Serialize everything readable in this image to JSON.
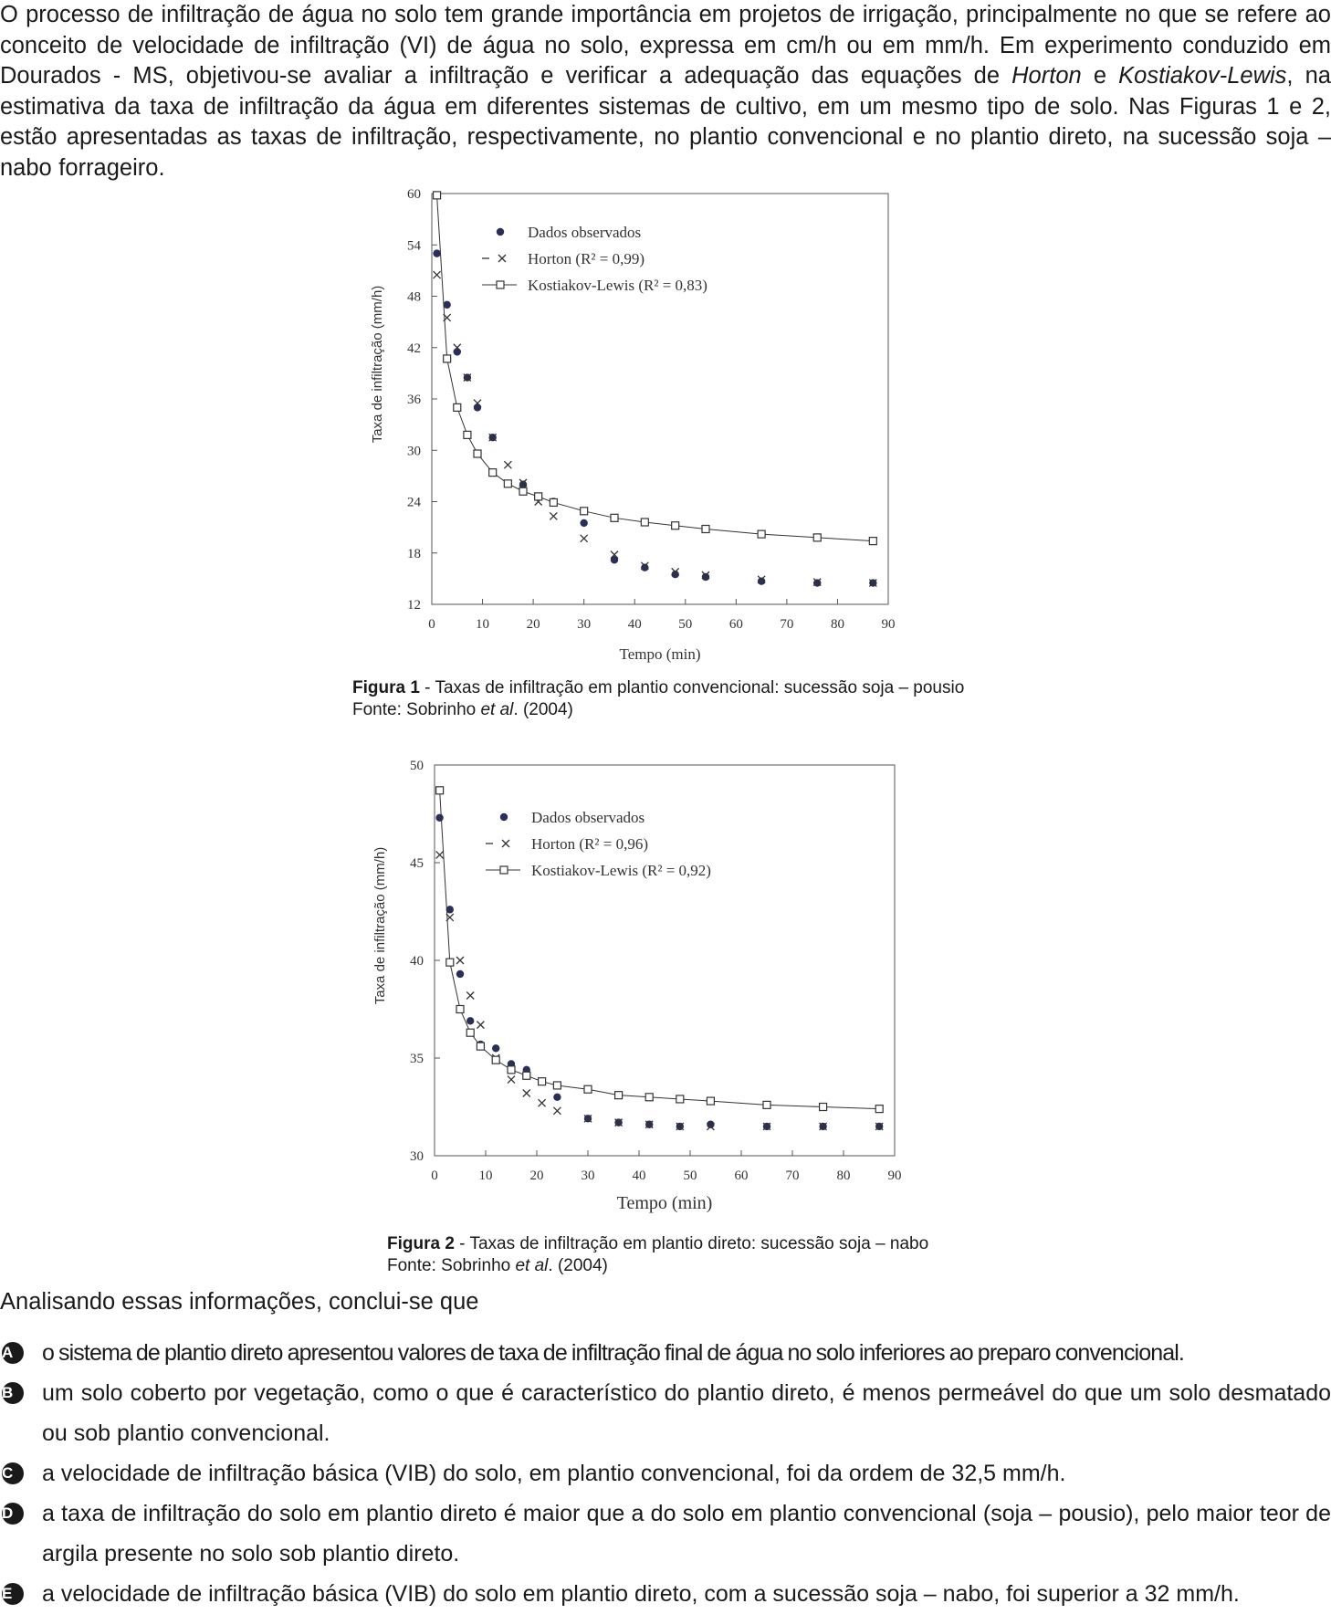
{
  "intro": {
    "part1": "O processo de infiltração de água no solo tem grande importância em projetos de irrigação, principalmente no que se refere ao conceito de velocidade de infiltração (VI) de água no solo, expressa em cm/h ou em mm/h. Em experimento conduzido em Dourados - MS, objetivou-se avaliar a infiltração e verificar a adequação das equações de ",
    "italic1": "Horton",
    "part2": " e ",
    "italic2": "Kostiakov-Lewis",
    "part3": ", na estimativa da taxa de infiltração da água em diferentes sistemas de cultivo, em um mesmo tipo de solo. Nas Figuras 1 e 2, estão apresentadas as taxas de infiltração, respectivamente, no plantio convencional e no plantio direto, na sucessão soja – nabo forrageiro."
  },
  "figure1": {
    "caption_label": "Figura 1",
    "caption_text": " - Taxas de infiltração em plantio convencional: sucessão soja – pousio",
    "source_pre": "Fonte: Sobrinho ",
    "source_italic": "et al",
    "source_post": ". (2004)"
  },
  "figure2": {
    "caption_label": "Figura 2",
    "caption_text": " - Taxas de infiltração em plantio direto: sucessão soja – nabo",
    "source_pre": "Fonte: Sobrinho ",
    "source_italic": "et al",
    "source_post": ". (2004)"
  },
  "question": "Analisando essas informações, conclui-se que",
  "options": [
    {
      "letter": "A",
      "text": "o sistema de plantio direto apresentou valores de taxa de infiltração final de água no solo inferiores ao preparo convencional."
    },
    {
      "letter": "B",
      "text": "um solo coberto por vegetação, como o que é característico do plantio direto, é menos permeável do que um solo desmatado ou sob plantio convencional."
    },
    {
      "letter": "C",
      "text": "a velocidade de infiltração básica (VIB) do solo, em plantio convencional, foi da ordem de 32,5 mm/h."
    },
    {
      "letter": "D",
      "text": "a taxa de infiltração do solo em plantio direto é maior que a do solo em plantio convencional (soja – pousio), pelo maior teor de argila presente no solo sob plantio direto."
    },
    {
      "letter": "E",
      "text": "a velocidade de infiltração básica (VIB) do solo em plantio direto, com a sucessão soja – nabo, foi superior a 32 mm/h."
    }
  ],
  "chart_data": [
    {
      "type": "scatter",
      "xlabel": "Tempo (min)",
      "ylabel": "Taxa de infiltração (mm/h)",
      "xlim": [
        0,
        90
      ],
      "ylim": [
        12,
        60
      ],
      "xticks": [
        0,
        10,
        20,
        30,
        40,
        50,
        60,
        70,
        80,
        90
      ],
      "yticks": [
        12,
        18,
        24,
        30,
        36,
        42,
        48,
        54,
        60
      ],
      "grid": false,
      "legend_position": "top-center",
      "series": [
        {
          "name": "Dados observados",
          "marker": "dot",
          "x": [
            1,
            3,
            5,
            7,
            9,
            12,
            18,
            24,
            30,
            36,
            42,
            48,
            54,
            65,
            76,
            87
          ],
          "y": [
            53,
            47,
            41.5,
            38.5,
            35,
            31.5,
            26,
            24,
            21.5,
            17.2,
            16.3,
            15.5,
            15.2,
            14.7,
            14.5,
            14.5
          ]
        },
        {
          "name": "Horton (R² = 0,99)",
          "marker": "x",
          "x": [
            1,
            3,
            5,
            7,
            9,
            12,
            15,
            18,
            21,
            24,
            30,
            36,
            42,
            48,
            54,
            65,
            76,
            87
          ],
          "y": [
            50.5,
            45.5,
            42,
            38.5,
            35.5,
            31.5,
            28.3,
            26.2,
            24,
            22.3,
            19.7,
            17.8,
            16.5,
            15.8,
            15.4,
            14.9,
            14.6,
            14.5
          ]
        },
        {
          "name": "Kostiakov-Lewis (R² = 0,83)",
          "marker": "square-line",
          "x": [
            1,
            3,
            5,
            7,
            9,
            12,
            15,
            18,
            21,
            24,
            30,
            36,
            42,
            48,
            54,
            65,
            76,
            87
          ],
          "y": [
            59.8,
            40.7,
            35,
            31.8,
            29.6,
            27.4,
            26.1,
            25.2,
            24.6,
            23.9,
            22.9,
            22.1,
            21.6,
            21.2,
            20.8,
            20.2,
            19.8,
            19.4
          ]
        }
      ]
    },
    {
      "type": "scatter",
      "xlabel": "Tempo (min)",
      "ylabel": "Taxa de infiltração (mm/h)",
      "xlim": [
        0,
        90
      ],
      "ylim": [
        30,
        50
      ],
      "xticks": [
        0,
        10,
        20,
        30,
        40,
        50,
        60,
        70,
        80,
        90
      ],
      "yticks": [
        30,
        35,
        40,
        45,
        50
      ],
      "grid": false,
      "legend_position": "top-center",
      "series": [
        {
          "name": "Dados observados",
          "marker": "dot",
          "x": [
            1,
            3,
            5,
            7,
            9,
            12,
            15,
            18,
            24,
            30,
            36,
            42,
            48,
            54,
            65,
            76,
            87
          ],
          "y": [
            47.3,
            42.6,
            39.3,
            36.9,
            35.7,
            35.5,
            34.7,
            34.4,
            33,
            31.9,
            31.7,
            31.6,
            31.5,
            31.6,
            31.5,
            31.5,
            31.5
          ]
        },
        {
          "name": "Horton (R² = 0,96)",
          "marker": "x",
          "x": [
            1,
            3,
            5,
            7,
            9,
            12,
            15,
            18,
            21,
            24,
            30,
            36,
            42,
            48,
            54,
            65,
            76,
            87
          ],
          "y": [
            45.4,
            42.2,
            40,
            38.2,
            36.7,
            35,
            33.9,
            33.2,
            32.7,
            32.3,
            31.9,
            31.7,
            31.6,
            31.5,
            31.5,
            31.5,
            31.5,
            31.5
          ]
        },
        {
          "name": "Kostiakov-Lewis (R² = 0,92)",
          "marker": "square-line",
          "x": [
            1,
            3,
            5,
            7,
            9,
            12,
            15,
            18,
            21,
            24,
            30,
            36,
            42,
            48,
            54,
            65,
            76,
            87
          ],
          "y": [
            48.7,
            39.9,
            37.5,
            36.3,
            35.6,
            34.9,
            34.4,
            34.1,
            33.8,
            33.6,
            33.4,
            33.1,
            33,
            32.9,
            32.8,
            32.6,
            32.5,
            32.4
          ]
        }
      ]
    }
  ]
}
